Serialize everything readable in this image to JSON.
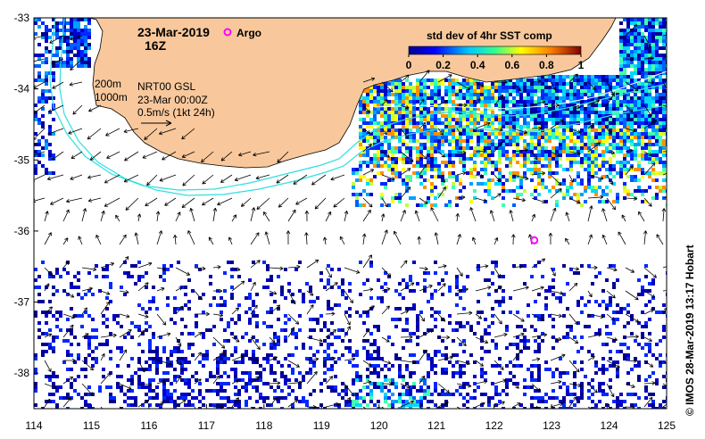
{
  "map": {
    "date": "23-Mar-2019",
    "time": "16Z",
    "argo_label": "Argo",
    "product": "NRT00 GSL",
    "product_time": "23-Mar 00:00Z",
    "vector_scale": "0.5m/s (1kt 24h)",
    "contours": [
      "200m",
      "1000m"
    ],
    "colorbar_title": "std dev of 4hr SST comp",
    "colorbar_ticks": [
      "0",
      "0.2",
      "0.4",
      "0.6",
      "0.8",
      "1"
    ],
    "credit": "© IMOS 28-Mar-2019 13:17 Hobart",
    "x_ticks": [
      "114",
      "115",
      "116",
      "117",
      "118",
      "119",
      "120",
      "121",
      "122",
      "123",
      "124",
      "125"
    ],
    "y_ticks": [
      "-33",
      "-34",
      "-35",
      "-36",
      "-37",
      "-38"
    ],
    "lon_range": [
      114,
      125
    ],
    "lat_range": [
      -38.5,
      -33
    ],
    "argo_float": {
      "lon": 122.7,
      "lat": -36.13
    },
    "colors": {
      "land": "#f8c89c",
      "contour": "#2fe0e0",
      "argo": "#ff00ff",
      "land_outline": "#000000"
    }
  }
}
